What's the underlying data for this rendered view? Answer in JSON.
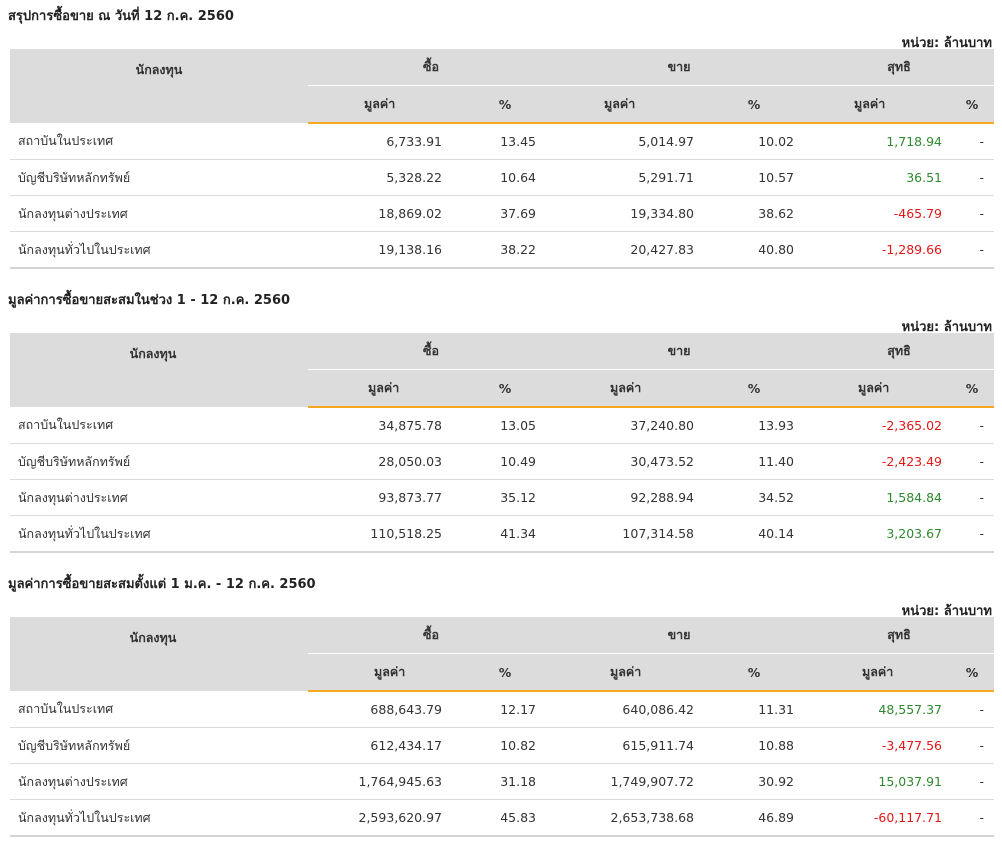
{
  "unit_label": "หน่วย: ล้านบาท",
  "headers": {
    "investor": "นักลงทุน",
    "buy": "ซื้อ",
    "sell": "ขาย",
    "net": "สุทธิ",
    "value": "มูลค่า",
    "percent": "%"
  },
  "colors": {
    "accent": "#f7a823",
    "positive": "#2f8a2f",
    "negative": "#e01818",
    "header_bg": "#dcdcdc"
  },
  "tables": [
    {
      "title": "สรุปการซื้อขาย ณ วันที่ 12 ก.ค. 2560",
      "rows": [
        {
          "investor": "สถาบันในประเทศ",
          "buy_value": "6,733.91",
          "buy_pct": "13.45",
          "sell_value": "5,014.97",
          "sell_pct": "10.02",
          "net_value": "1,718.94",
          "net_pct": "-"
        },
        {
          "investor": "บัญชีบริษัทหลักทรัพย์",
          "buy_value": "5,328.22",
          "buy_pct": "10.64",
          "sell_value": "5,291.71",
          "sell_pct": "10.57",
          "net_value": "36.51",
          "net_pct": "-"
        },
        {
          "investor": "นักลงทุนต่างประเทศ",
          "buy_value": "18,869.02",
          "buy_pct": "37.69",
          "sell_value": "19,334.80",
          "sell_pct": "38.62",
          "net_value": "-465.79",
          "net_pct": "-"
        },
        {
          "investor": "นักลงทุนทั่วไปในประเทศ",
          "buy_value": "19,138.16",
          "buy_pct": "38.22",
          "sell_value": "20,427.83",
          "sell_pct": "40.80",
          "net_value": "-1,289.66",
          "net_pct": "-"
        }
      ]
    },
    {
      "title": "มูลค่าการซื้อขายสะสมในช่วง 1 - 12 ก.ค. 2560",
      "rows": [
        {
          "investor": "สถาบันในประเทศ",
          "buy_value": "34,875.78",
          "buy_pct": "13.05",
          "sell_value": "37,240.80",
          "sell_pct": "13.93",
          "net_value": "-2,365.02",
          "net_pct": "-"
        },
        {
          "investor": "บัญชีบริษัทหลักทรัพย์",
          "buy_value": "28,050.03",
          "buy_pct": "10.49",
          "sell_value": "30,473.52",
          "sell_pct": "11.40",
          "net_value": "-2,423.49",
          "net_pct": "-"
        },
        {
          "investor": "นักลงทุนต่างประเทศ",
          "buy_value": "93,873.77",
          "buy_pct": "35.12",
          "sell_value": "92,288.94",
          "sell_pct": "34.52",
          "net_value": "1,584.84",
          "net_pct": "-"
        },
        {
          "investor": "นักลงทุนทั่วไปในประเทศ",
          "buy_value": "110,518.25",
          "buy_pct": "41.34",
          "sell_value": "107,314.58",
          "sell_pct": "40.14",
          "net_value": "3,203.67",
          "net_pct": "-"
        }
      ]
    },
    {
      "title": "มูลค่าการซื้อขายสะสมตั้งแต่ 1 ม.ค. - 12 ก.ค. 2560",
      "rows": [
        {
          "investor": "สถาบันในประเทศ",
          "buy_value": "688,643.79",
          "buy_pct": "12.17",
          "sell_value": "640,086.42",
          "sell_pct": "11.31",
          "net_value": "48,557.37",
          "net_pct": "-"
        },
        {
          "investor": "บัญชีบริษัทหลักทรัพย์",
          "buy_value": "612,434.17",
          "buy_pct": "10.82",
          "sell_value": "615,911.74",
          "sell_pct": "10.88",
          "net_value": "-3,477.56",
          "net_pct": "-"
        },
        {
          "investor": "นักลงทุนต่างประเทศ",
          "buy_value": "1,764,945.63",
          "buy_pct": "31.18",
          "sell_value": "1,749,907.72",
          "sell_pct": "30.92",
          "net_value": "15,037.91",
          "net_pct": "-"
        },
        {
          "investor": "นักลงทุนทั่วไปในประเทศ",
          "buy_value": "2,593,620.97",
          "buy_pct": "45.83",
          "sell_value": "2,653,738.68",
          "sell_pct": "46.89",
          "net_value": "-60,117.71",
          "net_pct": "-"
        }
      ]
    }
  ]
}
